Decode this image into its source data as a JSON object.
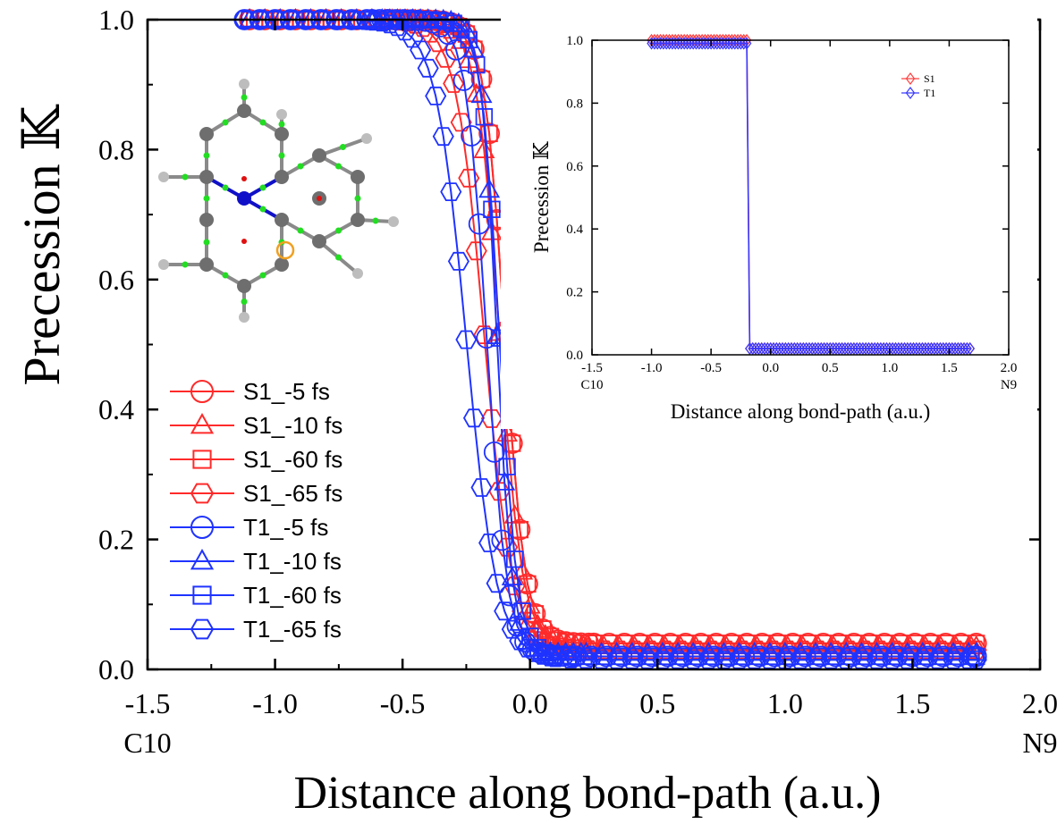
{
  "chart_data": [
    {
      "type": "line",
      "id": "main",
      "xlabel": "Distance along bond-path (a.u.)",
      "ylabel": "Precession 𝕂",
      "xlim": [
        -1.5,
        2.0
      ],
      "ylim": [
        0.0,
        1.0
      ],
      "xticks": [
        "-1.5",
        "-1.0",
        "-0.5",
        "0.0",
        "0.5",
        "1.0",
        "1.5",
        "2.0"
      ],
      "yticks": [
        "0.0",
        "0.2",
        "0.4",
        "0.6",
        "0.8",
        "1.0"
      ],
      "x_endpoint_labels": {
        "left": "C10",
        "right": "N9"
      },
      "series": [
        {
          "name": "S1_-5 fs",
          "color": "#ff2a2a",
          "marker": "circle",
          "x0": -1.1,
          "xend": 1.75,
          "mid": -0.1,
          "width": 0.04,
          "low": 0.04
        },
        {
          "name": "S1_-10 fs",
          "color": "#ff2a2a",
          "marker": "triangle",
          "x0": -1.1,
          "xend": 1.75,
          "mid": -0.12,
          "width": 0.045,
          "low": 0.035
        },
        {
          "name": "S1_-60 fs",
          "color": "#ff2a2a",
          "marker": "square",
          "x0": -1.08,
          "xend": 1.75,
          "mid": -0.1,
          "width": 0.04,
          "low": 0.04
        },
        {
          "name": "S1_-65 fs",
          "color": "#ff2a2a",
          "marker": "hexagon",
          "x0": -1.1,
          "xend": 1.75,
          "mid": -0.18,
          "width": 0.055,
          "low": 0.03
        },
        {
          "name": "T1_-5 fs",
          "color": "#1f33ff",
          "marker": "circle",
          "x0": -1.12,
          "xend": 1.75,
          "mid": -0.17,
          "width": 0.04,
          "low": 0.02
        },
        {
          "name": "T1_-10 fs",
          "color": "#1f33ff",
          "marker": "triangle",
          "x0": -1.1,
          "xend": 1.75,
          "mid": -0.13,
          "width": 0.03,
          "low": 0.025
        },
        {
          "name": "T1_-60 fs",
          "color": "#1f33ff",
          "marker": "square",
          "x0": -1.1,
          "xend": 1.75,
          "mid": -0.12,
          "width": 0.035,
          "low": 0.02
        },
        {
          "name": "T1_-65 fs",
          "color": "#1f33ff",
          "marker": "hexagon",
          "x0": -1.12,
          "xend": 1.75,
          "mid": -0.25,
          "width": 0.06,
          "low": 0.015
        }
      ]
    },
    {
      "type": "line",
      "id": "inset",
      "xlabel": "Distance along bond-path (a.u.)",
      "ylabel": "Precession 𝕂",
      "xlim": [
        -1.5,
        2.0
      ],
      "ylim": [
        0.0,
        1.0
      ],
      "xticks": [
        "-1.5",
        "-1.0",
        "-0.5",
        "0.0",
        "0.5",
        "1.0",
        "1.5",
        "2.0"
      ],
      "yticks": [
        "0.0",
        "0.2",
        "0.4",
        "0.6",
        "0.8",
        "1.0"
      ],
      "x_endpoint_labels": {
        "left": "C10",
        "right": "N9"
      },
      "series": [
        {
          "name": "S1",
          "color": "#ff4040",
          "marker": "diamond",
          "x0": -1.0,
          "xend": 1.68,
          "step_x": -0.18,
          "high": 1.0,
          "low": 0.02
        },
        {
          "name": "T1",
          "color": "#3a3aff",
          "marker": "diamond",
          "x0": -1.0,
          "xend": 1.68,
          "step_x": -0.19,
          "high": 0.99,
          "low": 0.02
        }
      ]
    }
  ],
  "molecule": {
    "atom_colors": {
      "carbon": "#6e6e6e",
      "nitrogen": "#1010c8",
      "hydrogen": "#bdbdbd",
      "bond_cp": "#22dd22",
      "ring_cp": "#e01010",
      "highlight": "#f0a020"
    }
  }
}
